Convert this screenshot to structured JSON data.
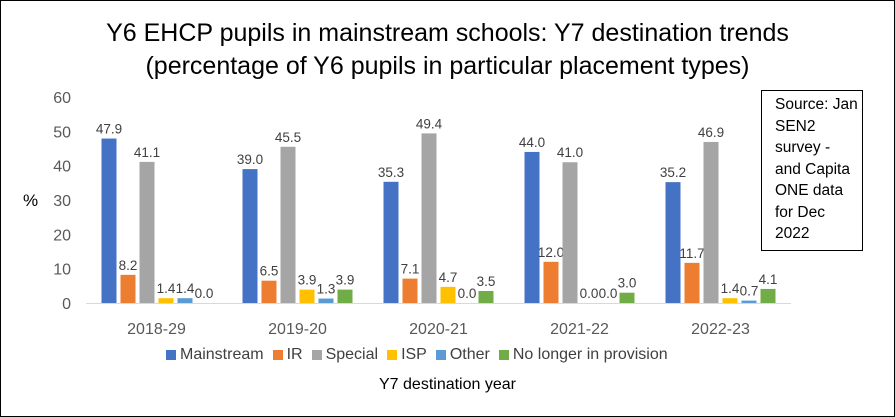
{
  "chart_data": {
    "type": "bar",
    "title_lines": [
      "Y6 EHCP pupils in mainstream schools: Y7 destination trends",
      "(percentage of Y6 pupils in particular placement types)"
    ],
    "xlabel": "Y7 destination year",
    "ylabel": "%",
    "ylim": [
      0,
      60
    ],
    "yticks": [
      "0",
      "10",
      "20",
      "30",
      "40",
      "50",
      "60"
    ],
    "ytick_values": [
      0,
      10,
      20,
      30,
      40,
      50,
      60
    ],
    "grid": false,
    "legend_position": "bottom",
    "categories": [
      "2018-29",
      "2019-20",
      "2020-21",
      "2021-22",
      "2022-23"
    ],
    "series": [
      {
        "name": "Mainstream",
        "color": "#4472C4",
        "values": [
          47.9,
          39.0,
          35.3,
          44.0,
          35.2
        ],
        "labels": [
          "47.9",
          "39.0",
          "35.3",
          "44.0",
          "35.2"
        ]
      },
      {
        "name": "IR",
        "color": "#ED7D31",
        "values": [
          8.2,
          6.5,
          7.1,
          12.0,
          11.7
        ],
        "labels": [
          "8.2",
          "6.5",
          "7.1",
          "12.0",
          "11.7"
        ]
      },
      {
        "name": "Special",
        "color": "#A5A5A5",
        "values": [
          41.1,
          45.5,
          49.4,
          41.0,
          46.9
        ],
        "labels": [
          "41.1",
          "45.5",
          "49.4",
          "41.0",
          "46.9"
        ]
      },
      {
        "name": "ISP",
        "color": "#FFC000",
        "values": [
          1.4,
          3.9,
          4.7,
          0.0,
          1.4
        ],
        "labels": [
          "1.4",
          "3.9",
          "4.7",
          "0.0",
          "1.4"
        ]
      },
      {
        "name": "Other",
        "color": "#5B9BD5",
        "values": [
          1.4,
          1.3,
          0.0,
          0.0,
          0.7
        ],
        "labels": [
          "1.4",
          "1.3",
          "0.0",
          "0.0",
          "0.7"
        ]
      },
      {
        "name": "No longer in provision",
        "color": "#70AD47",
        "values": [
          0.0,
          3.9,
          3.5,
          3.0,
          4.1
        ],
        "labels": [
          "0.0",
          "3.9",
          "3.5",
          "3.0",
          "4.1"
        ]
      }
    ],
    "source_note": [
      "Source: Jan",
      "SEN2",
      "survey -",
      "and Capita",
      "ONE data",
      "for Dec",
      "2022"
    ]
  }
}
